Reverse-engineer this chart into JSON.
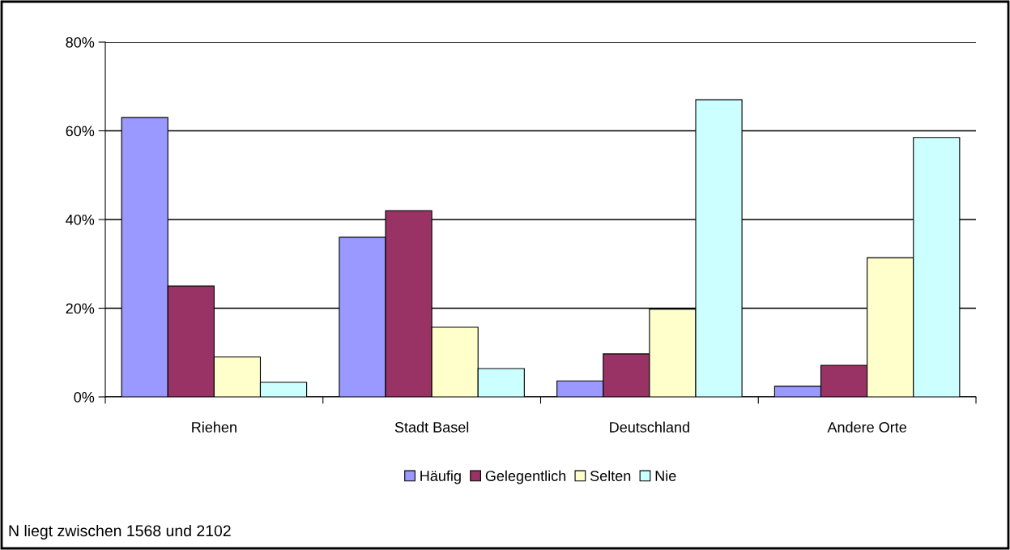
{
  "chart_data": {
    "type": "bar",
    "categories": [
      "Riehen",
      "Stadt Basel",
      "Deutschland",
      "Andere Orte"
    ],
    "series": [
      {
        "name": "Häufig",
        "color": "#9999ff",
        "values": [
          63,
          36,
          3.6,
          2.4
        ]
      },
      {
        "name": "Gelegentlich",
        "color": "#993366",
        "values": [
          25,
          42,
          9.7,
          7.1
        ]
      },
      {
        "name": "Selten",
        "color": "#ffffcc",
        "values": [
          9,
          15.7,
          19.8,
          31.4
        ]
      },
      {
        "name": "Nie",
        "color": "#ccffff",
        "values": [
          3.3,
          6.4,
          67,
          58.5
        ]
      }
    ],
    "ylim": [
      0,
      80
    ],
    "yticks": [
      {
        "value": 0,
        "label": "0%"
      },
      {
        "value": 20,
        "label": "20%"
      },
      {
        "value": 40,
        "label": "40%"
      },
      {
        "value": 60,
        "label": "60%"
      },
      {
        "value": 80,
        "label": "80%"
      }
    ],
    "grid": "y",
    "legend": "bottom",
    "annotations": [
      "N liegt zwischen 1568 und 2102"
    ]
  }
}
